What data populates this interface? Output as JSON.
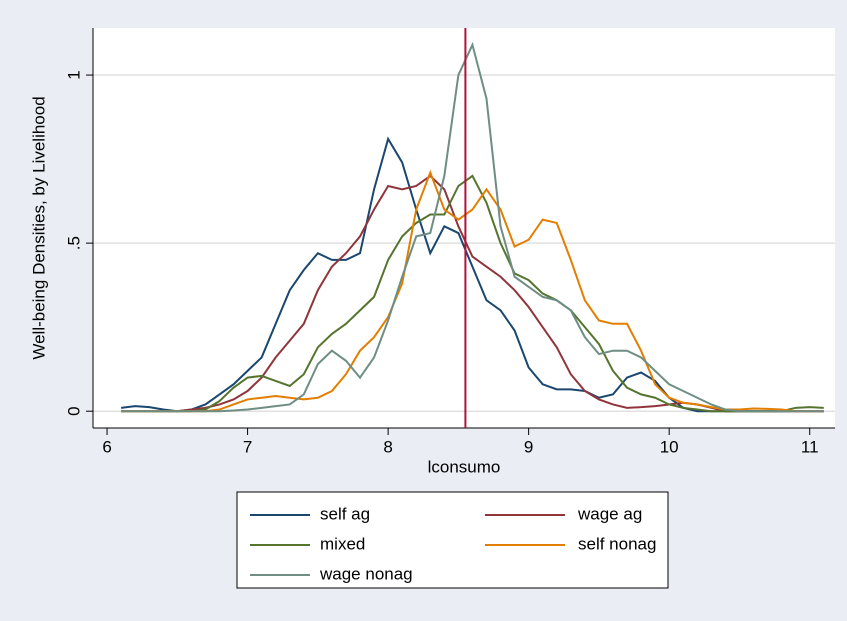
{
  "chart_data": {
    "type": "line",
    "ylabel": "Well-being Densities, by Livelihood",
    "xlabel": "lconsumo",
    "x": [
      6.1,
      6.2,
      6.3,
      6.4,
      6.5,
      6.6,
      6.7,
      6.8,
      6.9,
      7.0,
      7.1,
      7.2,
      7.3,
      7.4,
      7.5,
      7.6,
      7.7,
      7.8,
      7.9,
      8.0,
      8.1,
      8.2,
      8.3,
      8.4,
      8.5,
      8.6,
      8.7,
      8.8,
      8.9,
      9.0,
      9.1,
      9.2,
      9.3,
      9.4,
      9.5,
      9.6,
      9.7,
      9.8,
      9.9,
      10.0,
      10.1,
      10.2,
      10.3,
      10.4,
      10.5,
      10.6,
      10.7,
      10.8,
      10.9,
      11.0,
      11.1
    ],
    "series": [
      {
        "name": "self ag",
        "color": "#1a476f",
        "values": [
          0.01,
          0.015,
          0.012,
          0.005,
          0,
          0.005,
          0.02,
          0.05,
          0.08,
          0.12,
          0.16,
          0.26,
          0.36,
          0.42,
          0.47,
          0.45,
          0.45,
          0.47,
          0.66,
          0.81,
          0.74,
          0.6,
          0.47,
          0.55,
          0.53,
          0.43,
          0.33,
          0.3,
          0.24,
          0.13,
          0.08,
          0.065,
          0.065,
          0.06,
          0.04,
          0.05,
          0.1,
          0.115,
          0.09,
          0.04,
          0.01,
          0,
          0,
          0,
          0,
          0,
          0,
          0,
          0,
          0,
          0
        ]
      },
      {
        "name": "wage ag",
        "color": "#90353b",
        "values": [
          0,
          0,
          0,
          0,
          0,
          0.005,
          0.01,
          0.02,
          0.035,
          0.06,
          0.1,
          0.16,
          0.21,
          0.26,
          0.36,
          0.43,
          0.47,
          0.52,
          0.6,
          0.67,
          0.66,
          0.67,
          0.7,
          0.66,
          0.55,
          0.46,
          0.43,
          0.4,
          0.36,
          0.31,
          0.25,
          0.19,
          0.11,
          0.06,
          0.035,
          0.02,
          0.01,
          0.012,
          0.015,
          0.02,
          0.025,
          0.02,
          0.01,
          0,
          0,
          0,
          0,
          0,
          0,
          0,
          0
        ]
      },
      {
        "name": "mixed",
        "color": "#55752f",
        "values": [
          0,
          0,
          0,
          0,
          0,
          0,
          0.005,
          0.03,
          0.07,
          0.1,
          0.105,
          0.09,
          0.075,
          0.11,
          0.19,
          0.23,
          0.26,
          0.3,
          0.34,
          0.45,
          0.52,
          0.56,
          0.585,
          0.585,
          0.67,
          0.7,
          0.62,
          0.5,
          0.41,
          0.39,
          0.35,
          0.33,
          0.3,
          0.25,
          0.2,
          0.12,
          0.07,
          0.05,
          0.04,
          0.02,
          0.01,
          0.005,
          0,
          0,
          0,
          0,
          0,
          0,
          0.01,
          0.012,
          0.01
        ]
      },
      {
        "name": "self nonag",
        "color": "#e37e00",
        "values": [
          0,
          0,
          0,
          0,
          0,
          0,
          0,
          0.005,
          0.02,
          0.035,
          0.04,
          0.045,
          0.04,
          0.035,
          0.04,
          0.06,
          0.11,
          0.18,
          0.22,
          0.28,
          0.38,
          0.6,
          0.71,
          0.6,
          0.57,
          0.6,
          0.66,
          0.6,
          0.49,
          0.51,
          0.57,
          0.56,
          0.45,
          0.33,
          0.27,
          0.26,
          0.26,
          0.18,
          0.08,
          0.04,
          0.025,
          0.02,
          0.012,
          0.005,
          0.005,
          0.008,
          0.007,
          0.005,
          0,
          0,
          0
        ]
      },
      {
        "name": "wage nonag",
        "color": "#6e8e84",
        "values": [
          0,
          0,
          0,
          0,
          0,
          0,
          0,
          0,
          0.002,
          0.005,
          0.01,
          0.015,
          0.02,
          0.05,
          0.14,
          0.18,
          0.15,
          0.1,
          0.16,
          0.27,
          0.4,
          0.52,
          0.53,
          0.7,
          1.0,
          1.09,
          0.93,
          0.55,
          0.4,
          0.37,
          0.34,
          0.33,
          0.3,
          0.22,
          0.17,
          0.18,
          0.18,
          0.16,
          0.12,
          0.08,
          0.06,
          0.04,
          0.02,
          0.005,
          0,
          0,
          0,
          0,
          0,
          0,
          0
        ]
      }
    ],
    "xline": 8.55,
    "xline_color": "#b0123b",
    "xlim": [
      5.9,
      11.18
    ],
    "xticks": [
      6,
      7,
      8,
      9,
      10,
      11
    ],
    "ylim": [
      -0.05,
      1.14
    ],
    "yticks": [
      0,
      {
        "value": 0.5,
        "label": ".5"
      },
      1
    ],
    "grid": true,
    "legend_position": "bottom"
  }
}
